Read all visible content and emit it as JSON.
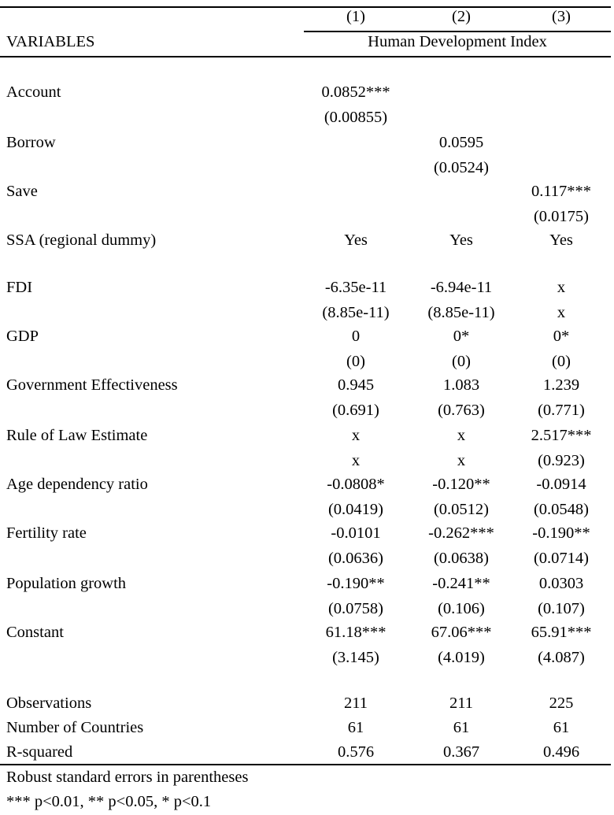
{
  "header": {
    "col_numbers": [
      "(1)",
      "(2)",
      "(3)"
    ],
    "variables_label": "VARIABLES",
    "dependent_var": "Human Development Index"
  },
  "rows": [
    {
      "label": "Account",
      "c1": "0.0852***",
      "c2": "",
      "c3": "",
      "s1": "(0.00855)",
      "s2": "",
      "s3": ""
    },
    {
      "label": "Borrow",
      "c1": "",
      "c2": "0.0595",
      "c3": "",
      "s1": "",
      "s2": "(0.0524)",
      "s3": ""
    },
    {
      "label": "Save",
      "c1": "",
      "c2": "",
      "c3": "0.117***",
      "s1": "",
      "s2": "",
      "s3": "(0.0175)"
    },
    {
      "label": "SSA (regional dummy)",
      "c1": "Yes",
      "c2": "Yes",
      "c3": "Yes",
      "s1": "",
      "s2": "",
      "s3": ""
    },
    {
      "label": "FDI",
      "c1": "-6.35e-11",
      "c2": "-6.94e-11",
      "c3": "x",
      "s1": "(8.85e-11)",
      "s2": "(8.85e-11)",
      "s3": "x"
    },
    {
      "label": "GDP",
      "c1": "0",
      "c2": "0*",
      "c3": "0*",
      "s1": "(0)",
      "s2": "(0)",
      "s3": "(0)"
    },
    {
      "label": "Government Effectiveness",
      "c1": "0.945",
      "c2": "1.083",
      "c3": "1.239",
      "s1": "(0.691)",
      "s2": "(0.763)",
      "s3": "(0.771)"
    },
    {
      "label": "Rule of Law Estimate",
      "c1": "x",
      "c2": "x",
      "c3": "2.517***",
      "s1": "x",
      "s2": "x",
      "s3": "(0.923)"
    },
    {
      "label": "Age dependency ratio",
      "c1": "-0.0808*",
      "c2": "-0.120**",
      "c3": "-0.0914",
      "s1": "(0.0419)",
      "s2": "(0.0512)",
      "s3": "(0.0548)"
    },
    {
      "label": "Fertility rate",
      "c1": "-0.0101",
      "c2": "-0.262***",
      "c3": "-0.190**",
      "s1": "(0.0636)",
      "s2": "(0.0638)",
      "s3": "(0.0714)"
    },
    {
      "label": "Population growth",
      "c1": "-0.190**",
      "c2": "-0.241**",
      "c3": "0.0303",
      "s1": "(0.0758)",
      "s2": "(0.106)",
      "s3": "(0.107)"
    },
    {
      "label": "Constant",
      "c1": "61.18***",
      "c2": "67.06***",
      "c3": "65.91***",
      "s1": "(3.145)",
      "s2": "(4.019)",
      "s3": "(4.087)"
    }
  ],
  "stats": [
    {
      "label": "Observations",
      "c1": "211",
      "c2": "211",
      "c3": "225"
    },
    {
      "label": "Number of Countries",
      "c1": "61",
      "c2": "61",
      "c3": "61"
    },
    {
      "label": "R-squared",
      "c1": "0.576",
      "c2": "0.367",
      "c3": "0.496"
    }
  ],
  "notes": {
    "line1": "Robust standard errors in parentheses",
    "line2": "*** p<0.01, ** p<0.05, * p<0.1"
  }
}
